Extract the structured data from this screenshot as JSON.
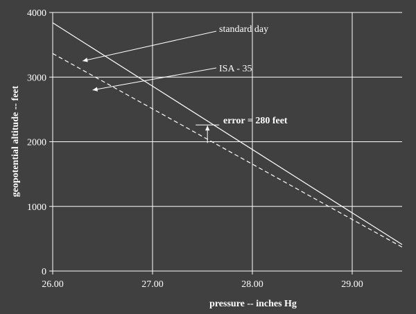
{
  "chart_data": {
    "type": "line",
    "title": "",
    "xlabel": "pressure -- inches Hg",
    "ylabel": "geopotential altitude -- feet",
    "xlim": [
      26.0,
      29.5
    ],
    "ylim": [
      0,
      4000
    ],
    "x_ticks": [
      26.0,
      27.0,
      28.0,
      29.0
    ],
    "x_tick_labels": [
      "26.00",
      "27.00",
      "28.00",
      "29.00"
    ],
    "y_ticks": [
      0,
      1000,
      2000,
      3000,
      4000
    ],
    "y_tick_labels": [
      "0",
      "1000",
      "2000",
      "3000",
      "4000"
    ],
    "grid": true,
    "colors": {
      "background": "#404040",
      "lines": "#ffffff"
    },
    "series": [
      {
        "name": "standard day",
        "style": "solid",
        "x": [
          26.0,
          29.5
        ],
        "y": [
          3840,
          410
        ]
      },
      {
        "name": "ISA - 35",
        "style": "dashed",
        "x": [
          26.0,
          29.5
        ],
        "y": [
          3365,
          370
        ]
      }
    ],
    "annotations": [
      {
        "text": "standard day",
        "points_to": "standard day",
        "at_x": 26.3,
        "at_y": 3250
      },
      {
        "text": "ISA - 35",
        "points_to": "ISA - 35",
        "at_x": 26.4,
        "at_y": 2800
      },
      {
        "text": "error = 280 feet",
        "bold": true,
        "error_at_x": 27.55,
        "error_from_y": 1980,
        "error_to_y": 2260
      }
    ]
  }
}
